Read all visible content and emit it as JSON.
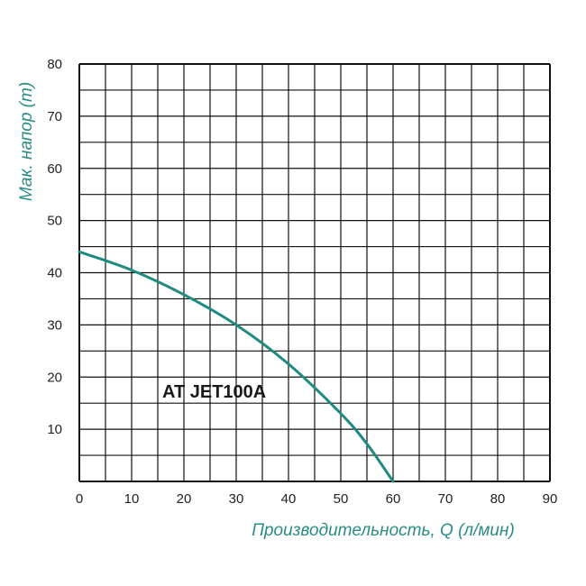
{
  "chart_data": {
    "type": "line",
    "title": "",
    "xlabel": "Производительность, Q (л/мин)",
    "ylabel": "Мак. напор (m)",
    "xlim": [
      0,
      90
    ],
    "ylim": [
      0,
      80
    ],
    "x_ticks": [
      0,
      10,
      20,
      30,
      40,
      50,
      60,
      70,
      80,
      90
    ],
    "y_ticks": [
      10,
      20,
      30,
      40,
      50,
      60,
      70,
      80
    ],
    "grid": true,
    "series": [
      {
        "name": "AT JET100A",
        "x": [
          0,
          10,
          20,
          30,
          40,
          50,
          55,
          60
        ],
        "y": [
          44,
          40.5,
          35.8,
          30,
          22.5,
          13,
          7.2,
          0
        ]
      }
    ]
  },
  "colors": {
    "curve": "#1e8a80",
    "axis_title": "#2a8c84",
    "grid": "#111111"
  }
}
